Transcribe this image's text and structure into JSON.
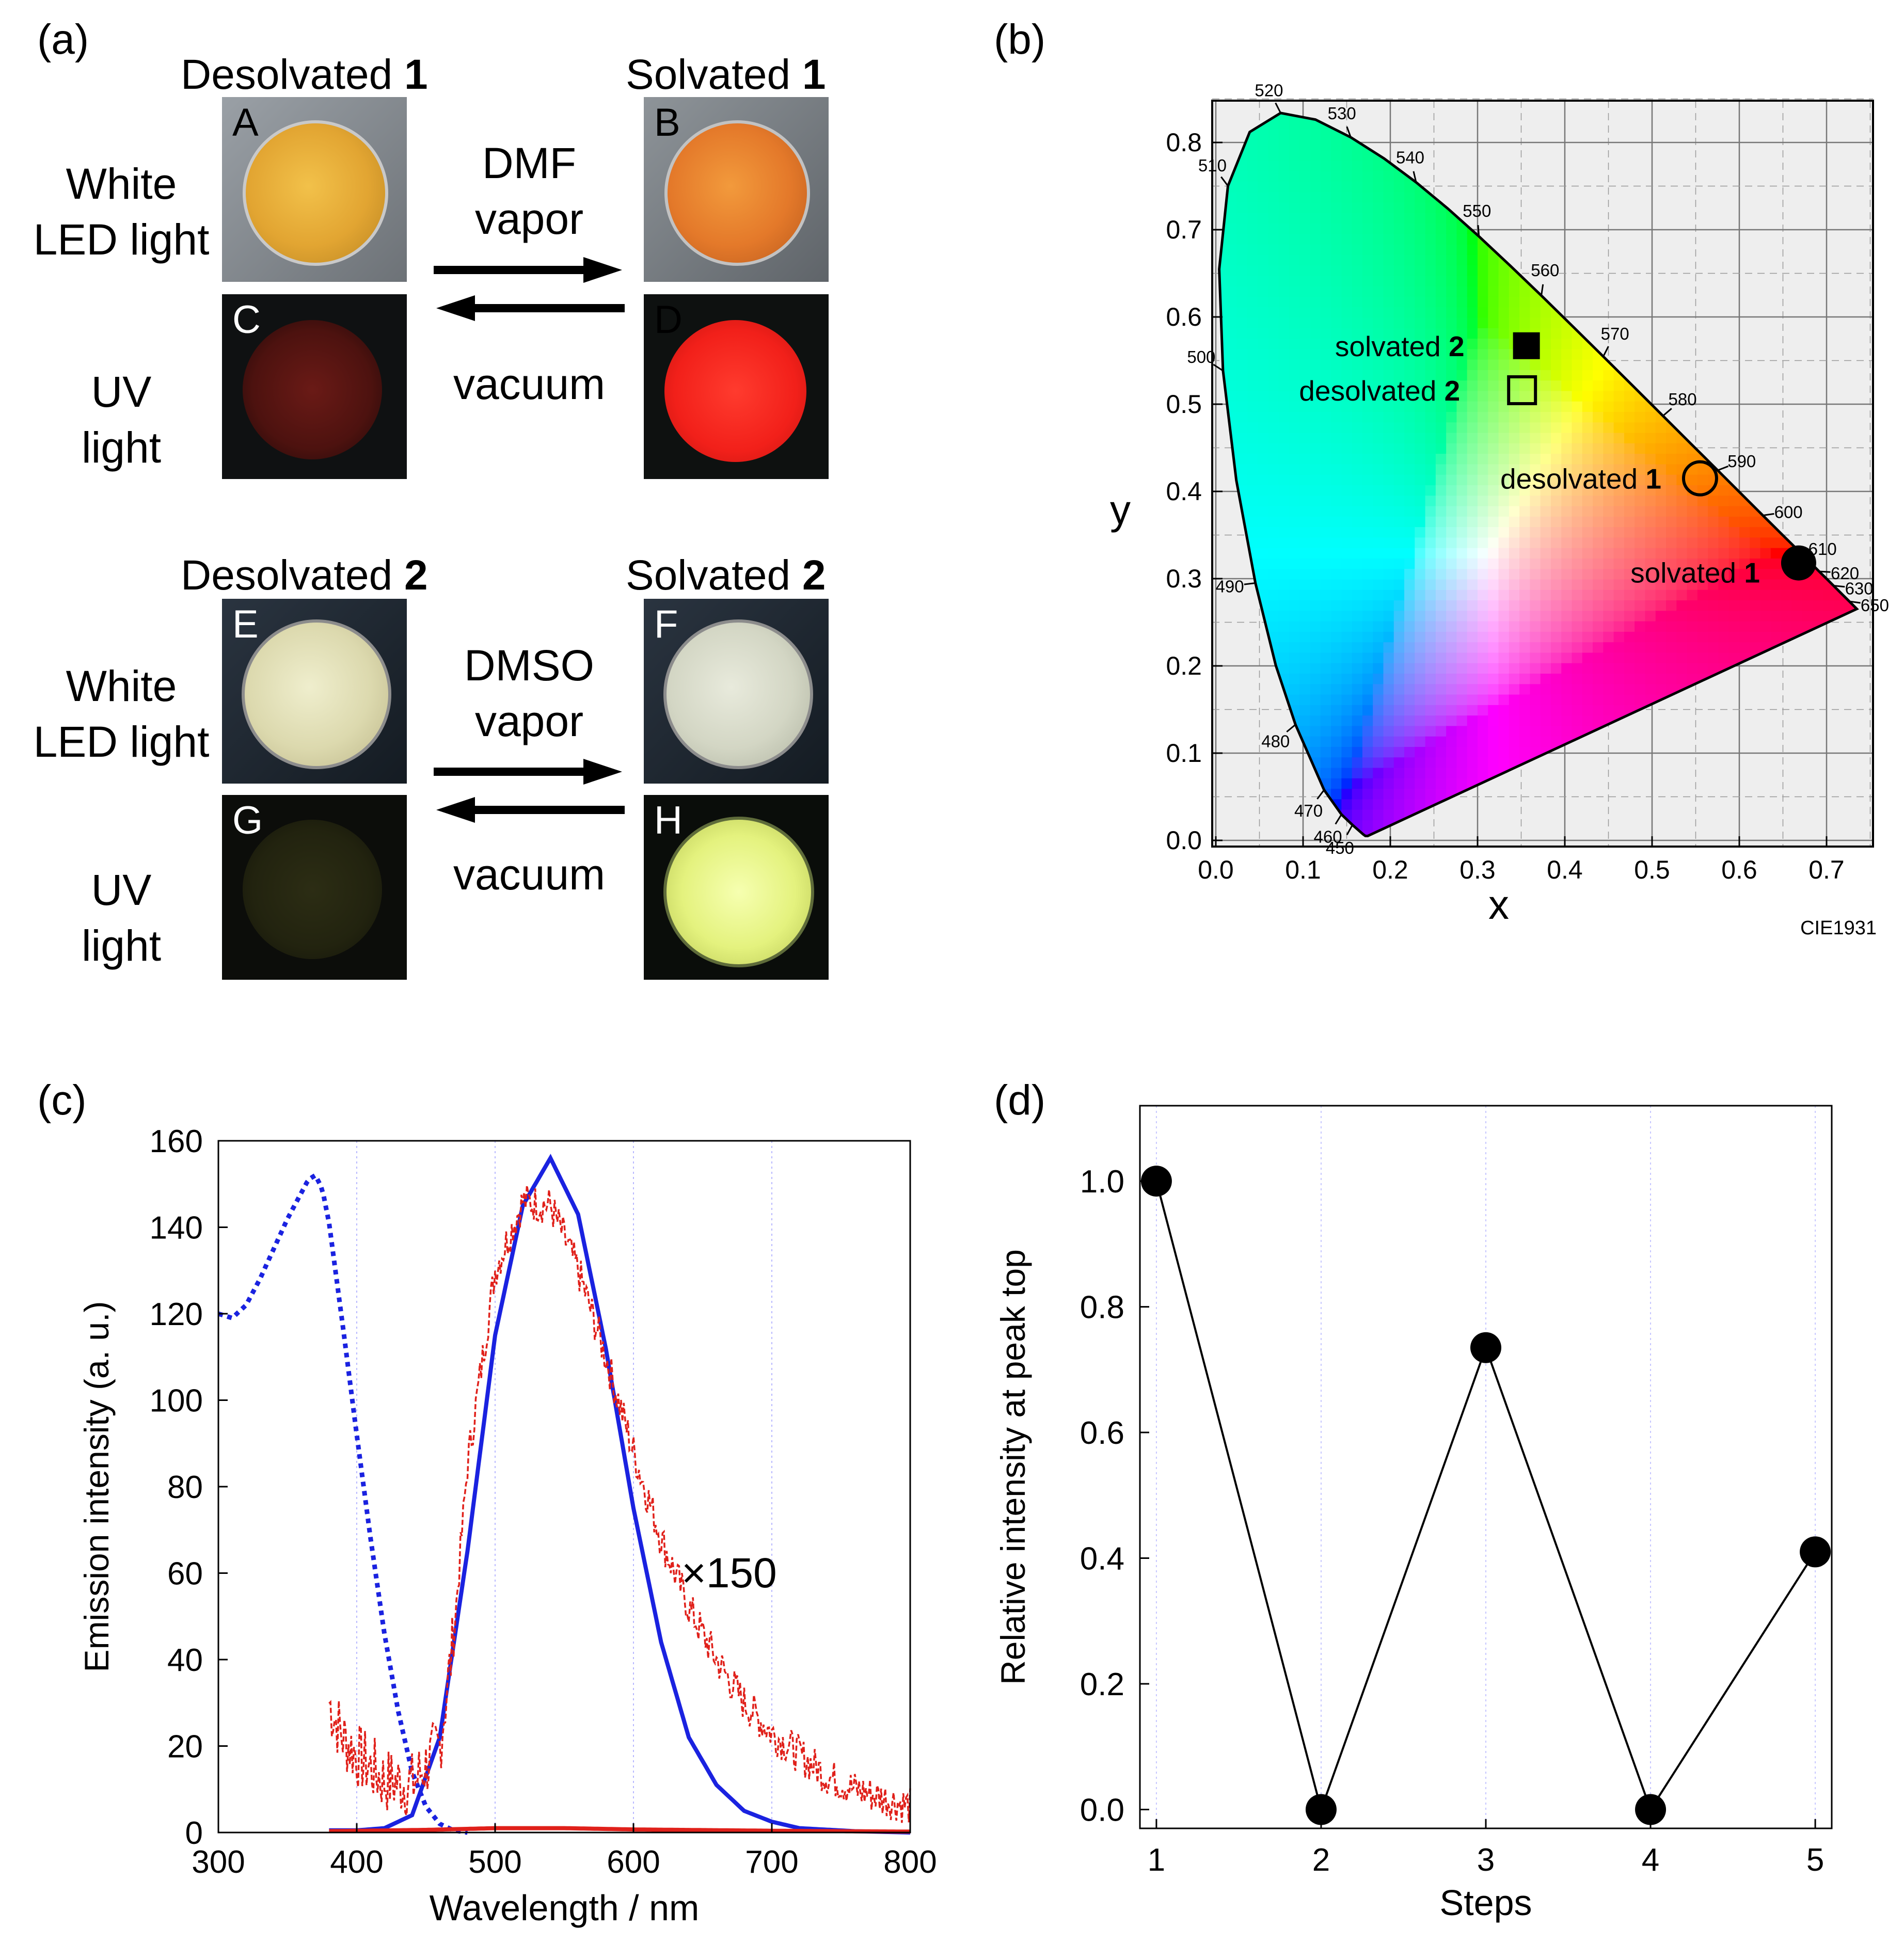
{
  "panel_a": {
    "label": "(a)",
    "compound1": {
      "desolvated_header": "Desolvated",
      "solvated_header": "Solvated",
      "number": "1",
      "arrow_top": [
        "DMF",
        "vapor"
      ],
      "arrow_bottom": "vacuum",
      "photos": [
        "A",
        "B",
        "C",
        "D"
      ]
    },
    "compound2": {
      "desolvated_header": "Desolvated",
      "solvated_header": "Solvated",
      "number": "2",
      "arrow_top": [
        "DMSO",
        "vapor"
      ],
      "arrow_bottom": "vacuum",
      "photos": [
        "E",
        "F",
        "G",
        "H"
      ]
    },
    "row_labels": {
      "white_led": [
        "White",
        "LED light"
      ],
      "uv": [
        "UV",
        "light"
      ]
    }
  },
  "panel_b": {
    "label": "(b)",
    "footer": "CIE1931"
  },
  "panel_c": {
    "label": "(c)",
    "annotation": "×150"
  },
  "panel_d": {
    "label": "(d)"
  },
  "chart_data": [
    {
      "type": "scatter",
      "panel": "b",
      "xlabel": "x",
      "ylabel": "y",
      "xlim": [
        0,
        0.75
      ],
      "ylim": [
        0,
        0.85
      ],
      "x_ticks": [
        "0.0",
        "0.1",
        "0.2",
        "0.3",
        "0.4",
        "0.5",
        "0.6",
        "0.7"
      ],
      "y_ticks": [
        "0.0",
        "0.1",
        "0.2",
        "0.3",
        "0.4",
        "0.5",
        "0.6",
        "0.7",
        "0.8"
      ],
      "grid": true,
      "points": [
        {
          "label": "solvated",
          "number": "2",
          "x": 0.356,
          "y": 0.567,
          "marker": "filled-square"
        },
        {
          "label": "desolvated",
          "number": "2",
          "x": 0.351,
          "y": 0.516,
          "marker": "open-square"
        },
        {
          "label": "desolvated",
          "number": "1",
          "x": 0.555,
          "y": 0.415,
          "marker": "open-circle"
        },
        {
          "label": "solvated",
          "number": "1",
          "x": 0.668,
          "y": 0.318,
          "marker": "filled-circle"
        }
      ],
      "locus_ticks": [
        {
          "nm": "450",
          "x": 0.1566,
          "y": 0.0177
        },
        {
          "nm": "460",
          "x": 0.144,
          "y": 0.0297
        },
        {
          "nm": "470",
          "x": 0.1241,
          "y": 0.0578
        },
        {
          "nm": "480",
          "x": 0.0913,
          "y": 0.1327
        },
        {
          "nm": "490",
          "x": 0.0454,
          "y": 0.295
        },
        {
          "nm": "500",
          "x": 0.0082,
          "y": 0.5384
        },
        {
          "nm": "510",
          "x": 0.0139,
          "y": 0.7502
        },
        {
          "nm": "520",
          "x": 0.0743,
          "y": 0.8338
        },
        {
          "nm": "530",
          "x": 0.1547,
          "y": 0.8059
        },
        {
          "nm": "540",
          "x": 0.2296,
          "y": 0.7543
        },
        {
          "nm": "550",
          "x": 0.3016,
          "y": 0.6923
        },
        {
          "nm": "560",
          "x": 0.3731,
          "y": 0.6245
        },
        {
          "nm": "570",
          "x": 0.4441,
          "y": 0.5547
        },
        {
          "nm": "580",
          "x": 0.5125,
          "y": 0.4866
        },
        {
          "nm": "590",
          "x": 0.5752,
          "y": 0.4242
        },
        {
          "nm": "600",
          "x": 0.627,
          "y": 0.3725
        },
        {
          "nm": "610",
          "x": 0.6658,
          "y": 0.334
        },
        {
          "nm": "620",
          "x": 0.6915,
          "y": 0.3083
        },
        {
          "nm": "630",
          "x": 0.7079,
          "y": 0.292
        },
        {
          "nm": "650",
          "x": 0.726,
          "y": 0.274
        }
      ]
    },
    {
      "type": "line",
      "panel": "c",
      "xlabel": "Wavelength / nm",
      "ylabel": "Emission intensity (a. u.)",
      "xlim": [
        300,
        800
      ],
      "ylim": [
        0,
        160
      ],
      "x_ticks": [
        "300",
        "400",
        "500",
        "600",
        "700",
        "800"
      ],
      "y_ticks": [
        "0",
        "20",
        "40",
        "60",
        "80",
        "100",
        "120",
        "140",
        "160"
      ],
      "series": [
        {
          "style": "blue-dotted",
          "x": [
            300,
            310,
            320,
            330,
            340,
            350,
            360,
            365,
            370,
            375,
            380,
            390,
            400,
            410,
            420,
            430,
            440,
            450,
            460,
            470,
            480
          ],
          "values": [
            120,
            119,
            122,
            128,
            135,
            142,
            148,
            151,
            152,
            149,
            141,
            117,
            92,
            68,
            46,
            28,
            14,
            6,
            2,
            0.5,
            0
          ]
        },
        {
          "style": "blue-solid",
          "x": [
            380,
            400,
            420,
            440,
            460,
            480,
            500,
            520,
            540,
            560,
            580,
            600,
            620,
            640,
            660,
            680,
            700,
            720,
            760,
            800
          ],
          "values": [
            0.5,
            0.5,
            1,
            4,
            22,
            65,
            115,
            145,
            156,
            143,
            112,
            75,
            44,
            22,
            11,
            5,
            2.5,
            1,
            0.3,
            0
          ]
        },
        {
          "style": "red-solid",
          "x": [
            380,
            450,
            500,
            550,
            600,
            700,
            800
          ],
          "values": [
            0.3,
            0.6,
            1.0,
            1.0,
            0.7,
            0.4,
            0.2
          ]
        },
        {
          "style": "red-dashed-noisy",
          "label": "×150",
          "x": [
            380,
            390,
            400,
            420,
            440,
            460,
            470,
            480,
            500,
            520,
            540,
            560,
            580,
            600,
            620,
            640,
            660,
            680,
            700,
            720,
            740,
            760,
            780,
            800
          ],
          "values": [
            30,
            22,
            18,
            12,
            11,
            20,
            45,
            85,
            130,
            146,
            145,
            130,
            110,
            88,
            68,
            52,
            40,
            30,
            23,
            18,
            13,
            10,
            8,
            6
          ]
        }
      ]
    },
    {
      "type": "line",
      "panel": "d",
      "xlabel": "Steps",
      "ylabel": "Relative intensity at peak top",
      "xlim": [
        0.9,
        5.1
      ],
      "ylim": [
        -0.03,
        1.12
      ],
      "x_ticks": [
        "1",
        "2",
        "3",
        "4",
        "5"
      ],
      "y_ticks": [
        "0.0",
        "0.2",
        "0.4",
        "0.6",
        "0.8",
        "1.0"
      ],
      "categories": [
        1,
        2,
        3,
        4,
        5
      ],
      "values": [
        1.0,
        0.0,
        0.735,
        0.0,
        0.41
      ]
    }
  ]
}
